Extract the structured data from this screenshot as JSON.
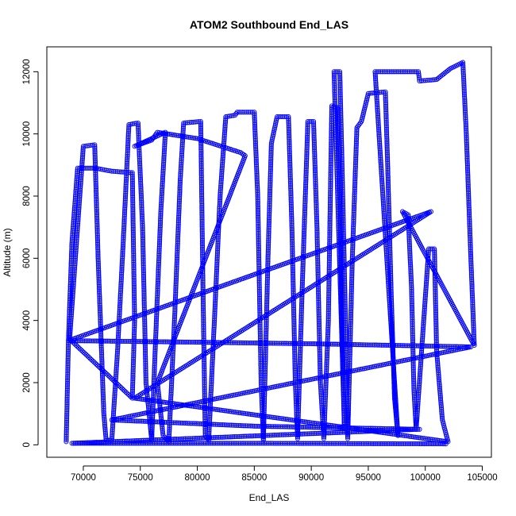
{
  "chart_data": {
    "type": "scatter",
    "title": "ATOM2 Southbound End_LAS",
    "xlabel": "End_LAS",
    "ylabel": "Altitude (m)",
    "xlim": [
      66800,
      105800
    ],
    "ylim": [
      -400,
      12800
    ],
    "xticks": [
      70000,
      75000,
      80000,
      85000,
      90000,
      95000,
      100000,
      105000
    ],
    "yticks": [
      0,
      2000,
      4000,
      6000,
      8000,
      10000,
      12000
    ],
    "grid": false,
    "marker": "open-circle",
    "color": "#0000ff",
    "series": [
      {
        "points": [
          [
            68500,
            100
          ],
          [
            68700,
            3400
          ],
          [
            69000,
            6500
          ],
          [
            69500,
            8900
          ],
          [
            71000,
            8900
          ],
          [
            72500,
            8800
          ],
          [
            74300,
            8750
          ],
          [
            74500,
            4000
          ],
          [
            74300,
            1500
          ],
          [
            68800,
            3400
          ],
          [
            70000,
            9600
          ],
          [
            71000,
            9650
          ],
          [
            71300,
            6000
          ],
          [
            71800,
            1000
          ],
          [
            72000,
            150
          ],
          [
            72500,
            150
          ],
          [
            73000,
            3000
          ],
          [
            73500,
            6500
          ],
          [
            74000,
            10300
          ],
          [
            74800,
            10350
          ],
          [
            75200,
            7000
          ],
          [
            75500,
            2000
          ],
          [
            76000,
            150
          ],
          [
            76300,
            3000
          ],
          [
            76800,
            7500
          ],
          [
            77200,
            10050
          ],
          [
            74500,
            9600
          ],
          [
            76000,
            9800
          ],
          [
            76500,
            10050
          ],
          [
            80000,
            9850
          ],
          [
            83800,
            9400
          ],
          [
            84200,
            9300
          ],
          [
            76500,
            2000
          ],
          [
            77000,
            300
          ],
          [
            77500,
            100
          ],
          [
            78000,
            4000
          ],
          [
            78500,
            8500
          ],
          [
            78800,
            10350
          ],
          [
            80300,
            10400
          ],
          [
            80500,
            5000
          ],
          [
            80700,
            300
          ],
          [
            81000,
            150
          ],
          [
            81500,
            4000
          ],
          [
            82000,
            8000
          ],
          [
            82500,
            10550
          ],
          [
            83300,
            10600
          ],
          [
            83500,
            10700
          ],
          [
            85000,
            10700
          ],
          [
            85300,
            8000
          ],
          [
            85600,
            2000
          ],
          [
            85800,
            150
          ],
          [
            86200,
            6000
          ],
          [
            86500,
            9700
          ],
          [
            87000,
            10550
          ],
          [
            88000,
            10550
          ],
          [
            88300,
            7000
          ],
          [
            88600,
            2000
          ],
          [
            88800,
            200
          ],
          [
            89200,
            5000
          ],
          [
            89700,
            10400
          ],
          [
            90200,
            10400
          ],
          [
            90500,
            7000
          ],
          [
            90800,
            2000
          ],
          [
            91100,
            200
          ],
          [
            91500,
            4000
          ],
          [
            91800,
            10900
          ],
          [
            92300,
            10850
          ],
          [
            92500,
            8000
          ],
          [
            92700,
            4000
          ],
          [
            92900,
            600
          ],
          [
            92000,
            12000
          ],
          [
            92500,
            12000
          ],
          [
            92700,
            9000
          ],
          [
            93000,
            4000
          ],
          [
            93200,
            200
          ],
          [
            93600,
            6000
          ],
          [
            94000,
            10200
          ],
          [
            94400,
            10400
          ],
          [
            95000,
            11300
          ],
          [
            96500,
            11350
          ],
          [
            96700,
            9000
          ],
          [
            97000,
            5000
          ],
          [
            97300,
            1500
          ],
          [
            97600,
            300
          ],
          [
            95600,
            12000
          ],
          [
            97500,
            12000
          ],
          [
            99400,
            12000
          ],
          [
            99500,
            11700
          ],
          [
            101000,
            11750
          ],
          [
            102200,
            12100
          ],
          [
            103300,
            12300
          ],
          [
            103600,
            10000
          ],
          [
            104000,
            6000
          ],
          [
            104300,
            3200
          ],
          [
            98000,
            7500
          ],
          [
            98500,
            7400
          ],
          [
            98800,
            5000
          ],
          [
            99000,
            1800
          ],
          [
            99200,
            500
          ],
          [
            100300,
            6300
          ],
          [
            100800,
            6300
          ],
          [
            101000,
            3000
          ],
          [
            101500,
            800
          ],
          [
            102000,
            100
          ],
          [
            74500,
            1500
          ],
          [
            100500,
            7500
          ],
          [
            68700,
            3350
          ],
          [
            80000,
            3300
          ],
          [
            90000,
            3250
          ],
          [
            104000,
            3150
          ],
          [
            72500,
            800
          ],
          [
            85000,
            600
          ],
          [
            99500,
            500
          ],
          [
            69000,
            50
          ],
          [
            85000,
            50
          ],
          [
            101800,
            30
          ]
        ]
      }
    ]
  }
}
